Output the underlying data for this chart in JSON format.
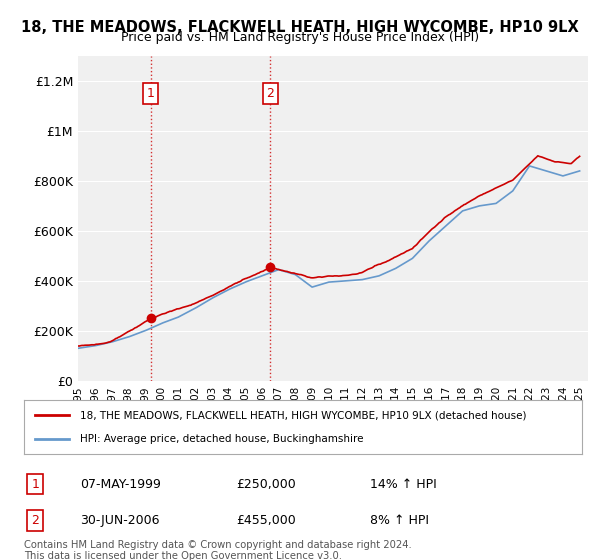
{
  "title": "18, THE MEADOWS, FLACKWELL HEATH, HIGH WYCOMBE, HP10 9LX",
  "subtitle": "Price paid vs. HM Land Registry's House Price Index (HPI)",
  "ylabel": "",
  "background_color": "#ffffff",
  "plot_bg_color": "#f0f0f0",
  "grid_color": "#ffffff",
  "line1_color": "#cc0000",
  "line2_color": "#6699cc",
  "sale1_date_idx": 4.35,
  "sale1_price": 250000,
  "sale1_label": "1",
  "sale1_year": 1999.35,
  "sale2_date_idx": 11.5,
  "sale2_price": 455000,
  "sale2_label": "2",
  "sale2_year": 2006.5,
  "ylim": [
    0,
    1300000
  ],
  "yticks": [
    0,
    200000,
    400000,
    600000,
    800000,
    1000000,
    1200000
  ],
  "ytick_labels": [
    "£0",
    "£200K",
    "£400K",
    "£600K",
    "£800K",
    "£1M",
    "£1.2M"
  ],
  "legend_line1": "18, THE MEADOWS, FLACKWELL HEATH, HIGH WYCOMBE, HP10 9LX (detached house)",
  "legend_line2": "HPI: Average price, detached house, Buckinghamshire",
  "table_row1": [
    "1",
    "07-MAY-1999",
    "£250,000",
    "14% ↑ HPI"
  ],
  "table_row2": [
    "2",
    "30-JUN-2006",
    "£455,000",
    "8% ↑ HPI"
  ],
  "footer": "Contains HM Land Registry data © Crown copyright and database right 2024.\nThis data is licensed under the Open Government Licence v3.0.",
  "x_start_year": 1995,
  "x_end_year": 2025
}
